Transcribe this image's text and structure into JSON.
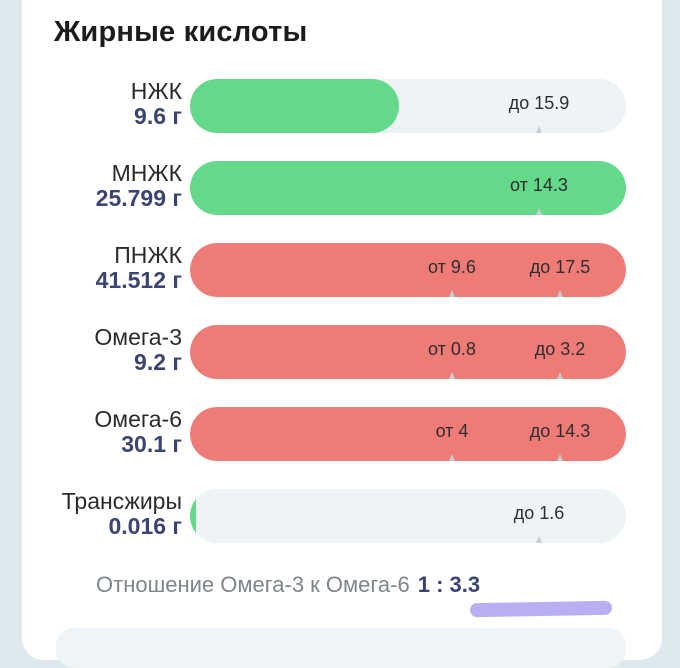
{
  "section": {
    "title": "Жирные кислоты"
  },
  "colors": {
    "ok": "#64d98a",
    "over": "#ef7b77",
    "track": "#eef3f6"
  },
  "rows": [
    {
      "name": "НЖК",
      "value": "9.6 г",
      "status": "ok",
      "fill_fraction": 0.48,
      "marker_a": "",
      "marker_b": "до 15.9"
    },
    {
      "name": "МНЖК",
      "value": "25.799 г",
      "status": "ok",
      "fill_fraction": 1.0,
      "marker_a": "",
      "marker_b": "от 14.3"
    },
    {
      "name": "ПНЖК",
      "value": "41.512 г",
      "status": "over",
      "fill_fraction": 1.0,
      "marker_a": "от 9.6",
      "marker_b": "до 17.5"
    },
    {
      "name": "Омега-3",
      "value": "9.2 г",
      "status": "over",
      "fill_fraction": 1.0,
      "marker_a": "от 0.8",
      "marker_b": "до 3.2"
    },
    {
      "name": "Омега-6",
      "value": "30.1 г",
      "status": "over",
      "fill_fraction": 1.0,
      "marker_a": "от 4",
      "marker_b": "до 14.3"
    },
    {
      "name": "Трансжиры",
      "value": "0.016 г",
      "status": "ok",
      "fill_fraction": 0.01,
      "marker_a": "",
      "marker_b": "до 1.6"
    }
  ],
  "ratio": {
    "label": "Отношение Омега-3 к Омега-6",
    "value": "1 : 3.3"
  }
}
